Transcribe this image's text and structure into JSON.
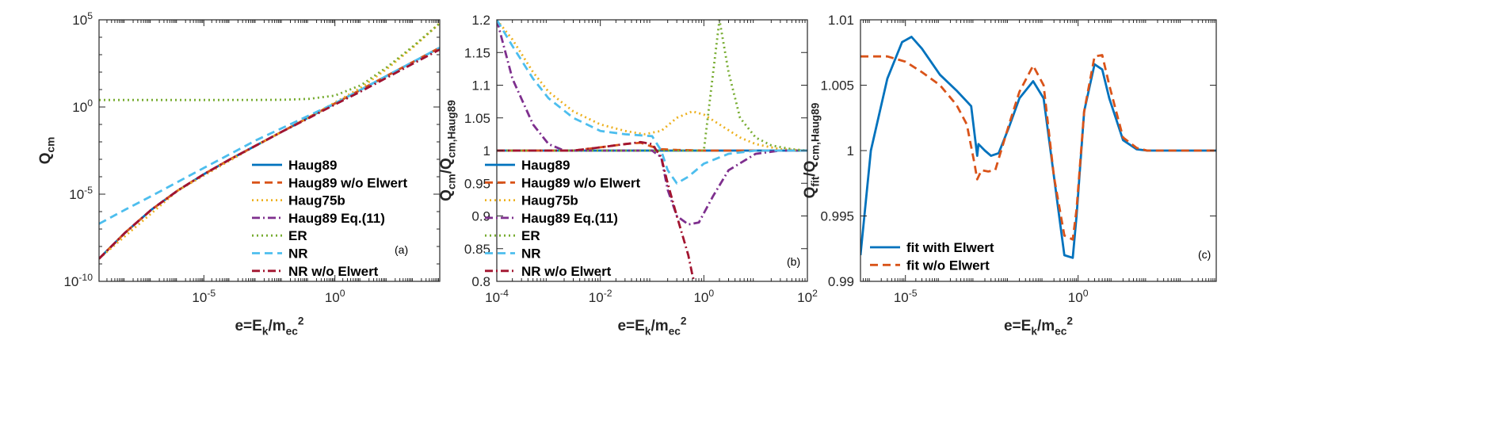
{
  "chart_data": [
    {
      "type": "line",
      "panel_label": "(a)",
      "xlabel": "e=E_k/m_ec^2",
      "ylabel": "Q_cm",
      "xscale": "log",
      "yscale": "log",
      "xlim": [
        1e-09,
        10000.0
      ],
      "ylim": [
        1e-10,
        100000.0
      ],
      "xticks": [
        {
          "v": 1e-05,
          "label": "10^-5"
        },
        {
          "v": 1,
          "label": "10^0"
        }
      ],
      "yticks": [
        {
          "v": 1e-10,
          "label": "10^-10"
        },
        {
          "v": 1e-05,
          "label": "10^-5"
        },
        {
          "v": 1,
          "label": "10^0"
        },
        {
          "v": 100000.0,
          "label": "10^5"
        }
      ],
      "legend_position": "bottom-right",
      "series": [
        {
          "name": "Haug89",
          "color": "#0072BD",
          "dash": "solid",
          "x": [
            1e-09,
            1e-08,
            1e-07,
            1e-06,
            1e-05,
            0.0001,
            0.001,
            0.01,
            0.1,
            1,
            10,
            100,
            1000,
            10000.0
          ],
          "y": [
            2e-09,
            6.3e-08,
            1.3e-06,
            1.6e-05,
            0.00014,
            0.001,
            0.0063,
            0.04,
            0.25,
            1.6,
            10,
            63,
            400,
            2500
          ]
        },
        {
          "name": "Haug89 w/o Elwert",
          "color": "#D95319",
          "dash": "dashed",
          "x": [
            1e-09,
            1e-08,
            1e-07,
            1e-06,
            1e-05,
            0.0001,
            0.001,
            0.01,
            0.1,
            1,
            10,
            100,
            1000,
            10000.0
          ],
          "y": [
            2e-09,
            6.3e-08,
            1.3e-06,
            1.6e-05,
            0.00014,
            0.001,
            0.0063,
            0.04,
            0.25,
            1.6,
            10,
            63,
            400,
            2500
          ]
        },
        {
          "name": "Haug75b",
          "color": "#EDB120",
          "dash": "dotted",
          "x": [
            1e-09,
            1e-06,
            0.001,
            0.01,
            0.1,
            1,
            10,
            100,
            1000,
            10000.0
          ],
          "y": [
            2e-09,
            1.6e-05,
            0.0063,
            0.04,
            0.26,
            1.8,
            13,
            160,
            2800,
            63000
          ]
        },
        {
          "name": "Haug89 Eq.(11)",
          "color": "#7E2F8E",
          "dash": "dashdot",
          "x": [
            1e-09,
            1e-08,
            1e-07,
            1e-06,
            1e-05,
            0.0001,
            0.001,
            0.01,
            0.1,
            1,
            10,
            100,
            1000,
            10000.0
          ],
          "y": [
            2e-09,
            6.3e-08,
            1.3e-06,
            1.6e-05,
            0.00014,
            0.001,
            0.0063,
            0.04,
            0.23,
            1.4,
            8,
            50,
            320,
            2000
          ]
        },
        {
          "name": "ER",
          "color": "#77AC30",
          "dash": "dotted",
          "x": [
            1e-09,
            1e-07,
            1e-05,
            0.001,
            0.01,
            0.1,
            1,
            10,
            100,
            1000,
            10000.0
          ],
          "y": [
            2.5,
            2.5,
            2.5,
            2.55,
            2.6,
            2.9,
            4.5,
            18,
            200,
            3200,
            63000
          ]
        },
        {
          "name": "NR",
          "color": "#4DBEEE",
          "dash": "dashed",
          "x": [
            1e-09,
            1e-08,
            1e-07,
            1e-06,
            1e-05,
            0.0001,
            0.001,
            0.01,
            0.1,
            1,
            10,
            100,
            1000,
            10000.0
          ],
          "y": [
            2e-07,
            1.3e-06,
            7.9e-06,
            5e-05,
            0.00032,
            0.002,
            0.0126,
            0.063,
            0.32,
            1.6,
            10,
            63,
            400,
            2500
          ]
        },
        {
          "name": "NR w/o Elwert",
          "color": "#A2142F",
          "dash": "dashdot",
          "x": [
            1e-09,
            1e-08,
            1e-07,
            1e-06,
            1e-05,
            0.0001,
            0.001,
            0.01,
            0.1,
            1,
            10,
            100,
            1000,
            10000.0
          ],
          "y": [
            2e-09,
            6.3e-08,
            1.3e-06,
            1.6e-05,
            0.00014,
            0.001,
            0.0063,
            0.04,
            0.23,
            1.4,
            8,
            50,
            320,
            2000
          ]
        }
      ]
    },
    {
      "type": "line",
      "panel_label": "(b)",
      "xlabel": "e=E_k/m_ec^2",
      "ylabel": "Q_cm/Q_cm,Haug89",
      "xscale": "log",
      "yscale": "linear",
      "xlim": [
        0.0001,
        100
      ],
      "ylim": [
        0.8,
        1.2
      ],
      "xticks": [
        {
          "v": 0.0001,
          "label": "10^-4"
        },
        {
          "v": 0.01,
          "label": "10^-2"
        },
        {
          "v": 1,
          "label": "10^0"
        },
        {
          "v": 100,
          "label": "10^2"
        }
      ],
      "yticks": [
        {
          "v": 0.8,
          "label": "0.8"
        },
        {
          "v": 0.85,
          "label": "0.85"
        },
        {
          "v": 0.9,
          "label": "0.9"
        },
        {
          "v": 0.95,
          "label": "0.95"
        },
        {
          "v": 1,
          "label": "1"
        },
        {
          "v": 1.05,
          "label": "1.05"
        },
        {
          "v": 1.1,
          "label": "1.1"
        },
        {
          "v": 1.15,
          "label": "1.15"
        },
        {
          "v": 1.2,
          "label": "1.2"
        }
      ],
      "legend_position": "bottom-left",
      "series": [
        {
          "name": "Haug89",
          "color": "#0072BD",
          "dash": "solid",
          "x": [
            0.0001,
            100
          ],
          "y": [
            1.0,
            1.0
          ]
        },
        {
          "name": "Haug89 w/o Elwert",
          "color": "#D95319",
          "dash": "dashed",
          "x": [
            0.0001,
            0.001,
            0.003,
            0.01,
            0.03,
            0.06,
            0.1,
            0.15,
            0.3,
            1,
            10,
            100
          ],
          "y": [
            1.0,
            1.0,
            1.0,
            1.005,
            1.01,
            1.012,
            1.006,
            1.002,
            1.001,
            1.0,
            1.0,
            1.0
          ]
        },
        {
          "name": "Haug75b",
          "color": "#EDB120",
          "dash": "dotted",
          "x": [
            0.0001,
            0.0002,
            0.0005,
            0.001,
            0.003,
            0.01,
            0.03,
            0.07,
            0.15,
            0.3,
            0.6,
            1,
            2,
            5,
            10,
            30,
            100
          ],
          "y": [
            1.2,
            1.17,
            1.12,
            1.09,
            1.06,
            1.04,
            1.03,
            1.025,
            1.03,
            1.05,
            1.06,
            1.055,
            1.04,
            1.02,
            1.01,
            1.002,
            1.0
          ]
        },
        {
          "name": "Haug89 Eq.(11)",
          "color": "#7E2F8E",
          "dash": "dashdot",
          "x": [
            0.0001,
            0.0002,
            0.0005,
            0.001,
            0.002,
            0.005,
            0.02,
            0.1,
            0.15,
            0.2,
            0.3,
            0.5,
            0.8,
            1.5,
            3,
            10,
            30,
            100
          ],
          "y": [
            1.2,
            1.11,
            1.04,
            1.01,
            1.0,
            1.0,
            1.0,
            1.0,
            0.99,
            0.94,
            0.9,
            0.887,
            0.89,
            0.93,
            0.97,
            0.995,
            1.0,
            1.0
          ]
        },
        {
          "name": "ER",
          "color": "#77AC30",
          "dash": "dotted",
          "x": [
            0.0001,
            0.1,
            1,
            2,
            3,
            5,
            10,
            20,
            50,
            100
          ],
          "y": [
            1.0,
            1.0,
            1.0,
            1.2,
            1.12,
            1.05,
            1.02,
            1.008,
            1.002,
            1.0
          ]
        },
        {
          "name": "NR",
          "color": "#4DBEEE",
          "dash": "dashed",
          "x": [
            0.0001,
            0.0002,
            0.0005,
            0.001,
            0.003,
            0.01,
            0.03,
            0.1,
            0.15,
            0.2,
            0.3,
            0.5,
            1,
            3,
            10,
            100
          ],
          "y": [
            1.2,
            1.16,
            1.11,
            1.08,
            1.05,
            1.03,
            1.025,
            1.022,
            1.0,
            0.97,
            0.95,
            0.96,
            0.98,
            0.995,
            1.0,
            1.0
          ]
        },
        {
          "name": "NR w/o Elwert",
          "color": "#A2142F",
          "dash": "dashdot",
          "x": [
            0.0001,
            0.001,
            0.003,
            0.01,
            0.03,
            0.06,
            0.1,
            0.15,
            0.2,
            0.3,
            0.5,
            0.6,
            0.7
          ],
          "y": [
            1.0,
            1.0,
            1.0,
            1.005,
            1.01,
            1.013,
            1.01,
            0.99,
            0.95,
            0.9,
            0.84,
            0.81,
            0.79
          ]
        }
      ]
    },
    {
      "type": "line",
      "panel_label": "(c)",
      "xlabel": "e=E_k/m_ec^2",
      "ylabel": "Q_fit/Q_cm,Haug89",
      "xscale": "log",
      "yscale": "linear",
      "xlim": [
        5e-07,
        10000.0
      ],
      "ylim": [
        0.99,
        1.01
      ],
      "xticks": [
        {
          "v": 1e-05,
          "label": "10^-5"
        },
        {
          "v": 1,
          "label": "10^0"
        }
      ],
      "yticks": [
        {
          "v": 0.99,
          "label": "0.99"
        },
        {
          "v": 0.995,
          "label": "0.995"
        },
        {
          "v": 1,
          "label": "1"
        },
        {
          "v": 1.005,
          "label": "1.005"
        },
        {
          "v": 1.01,
          "label": "1.01"
        }
      ],
      "legend_position": "bottom-left",
      "series": [
        {
          "name": "fit with Elwert",
          "color": "#0072BD",
          "dash": "solid",
          "x": [
            5e-07,
            1e-06,
            3e-06,
            8e-06,
            1.5e-05,
            3e-05,
            0.0001,
            0.0003,
            0.0008,
            0.0012,
            0.0013,
            0.002,
            0.003,
            0.005,
            0.01,
            0.02,
            0.05,
            0.1,
            0.2,
            0.4,
            0.7,
            0.9,
            1.5,
            3,
            5,
            8,
            20,
            50,
            100,
            1000,
            10000.0
          ],
          "y": [
            0.992,
            1.0,
            1.0055,
            1.0083,
            1.0087,
            1.0078,
            1.0058,
            1.0046,
            1.0034,
            0.9996,
            1.0005,
            1.0,
            0.9996,
            0.9998,
            1.0018,
            1.004,
            1.0053,
            1.004,
            0.998,
            0.992,
            0.9918,
            0.995,
            1.003,
            1.0066,
            1.0062,
            1.004,
            1.0008,
            1.0001,
            1.0,
            1.0,
            1.0
          ]
        },
        {
          "name": "fit w/o Elwert",
          "color": "#D95319",
          "dash": "dashed",
          "x": [
            5e-07,
            3e-06,
            1e-05,
            3e-05,
            0.0001,
            0.0003,
            0.0006,
            0.001,
            0.0012,
            0.0016,
            0.0025,
            0.004,
            0.01,
            0.02,
            0.05,
            0.1,
            0.2,
            0.4,
            0.7,
            0.9,
            1.5,
            3,
            5,
            8,
            20,
            50,
            100,
            1000,
            10000.0
          ],
          "y": [
            1.0072,
            1.0072,
            1.0068,
            1.006,
            1.005,
            1.0035,
            1.002,
            0.999,
            0.9978,
            0.9985,
            0.9984,
            0.9985,
            1.002,
            1.0045,
            1.0065,
            1.005,
            0.998,
            0.9935,
            0.9932,
            0.9955,
            1.003,
            1.0072,
            1.0073,
            1.005,
            1.001,
            1.0002,
            1.0,
            1.0,
            1.0
          ]
        }
      ]
    }
  ]
}
